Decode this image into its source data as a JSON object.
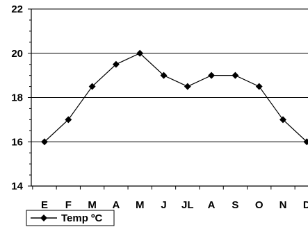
{
  "chart_data": {
    "type": "line",
    "categories": [
      "E",
      "F",
      "M",
      "A",
      "M",
      "J",
      "JL",
      "A",
      "S",
      "O",
      "N",
      "D"
    ],
    "series": [
      {
        "name": "Temp ºC",
        "values": [
          16,
          17,
          18.5,
          19.5,
          20,
          19,
          18.5,
          19,
          19,
          18.5,
          17,
          16
        ]
      }
    ],
    "ylim": [
      14,
      22
    ],
    "yticks": [
      "14",
      "16",
      "18",
      "20",
      "22"
    ],
    "y_minor_step": 0.5,
    "gridlines": [
      16,
      18,
      20
    ],
    "legend_position": "bottom-left",
    "colors": {
      "line": "#000000",
      "grid": "#000000",
      "marker": "#000000"
    }
  }
}
